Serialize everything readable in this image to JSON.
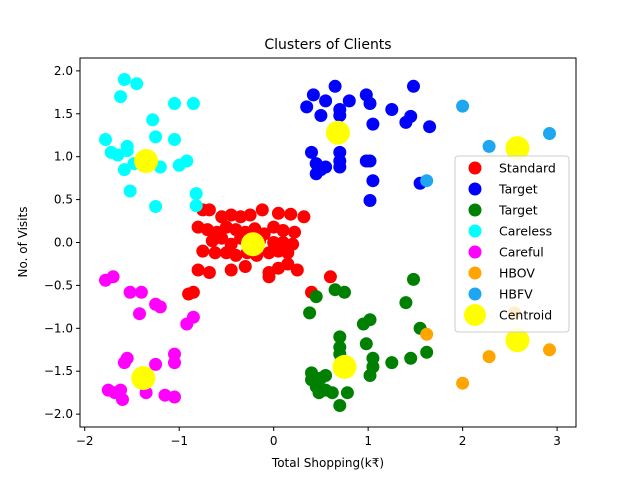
{
  "chart_data": {
    "type": "scatter",
    "title": "Clusters of Clients",
    "xlabel": "Total Shopping(k₹)",
    "ylabel": "No. of Visits",
    "xlim": [
      -2.05,
      3.2
    ],
    "ylim": [
      -2.15,
      2.15
    ],
    "xticks": [
      -2,
      -1,
      0,
      1,
      2,
      3
    ],
    "yticks": [
      -2.0,
      -1.5,
      -1.0,
      -0.5,
      0.0,
      0.5,
      1.0,
      1.5,
      2.0
    ],
    "xtick_labels": [
      "−2",
      "−1",
      "0",
      "1",
      "2",
      "3"
    ],
    "ytick_labels": [
      "−2.0",
      "−1.5",
      "−1.0",
      "−0.5",
      "0.0",
      "0.5",
      "1.0",
      "1.5",
      "2.0"
    ],
    "grid": false,
    "legend_position": "right",
    "series": [
      {
        "name": "Standard",
        "color": "#ff0000",
        "points": [
          [
            -0.75,
            0.38
          ],
          [
            -0.68,
            0.38
          ],
          [
            -0.55,
            0.3
          ],
          [
            -0.45,
            0.32
          ],
          [
            -0.35,
            0.3
          ],
          [
            -0.25,
            0.32
          ],
          [
            -0.12,
            0.38
          ],
          [
            0.05,
            0.34
          ],
          [
            0.18,
            0.33
          ],
          [
            0.32,
            0.3
          ],
          [
            -0.8,
            0.18
          ],
          [
            -0.7,
            0.15
          ],
          [
            -0.6,
            0.12
          ],
          [
            -0.5,
            0.18
          ],
          [
            -0.4,
            0.15
          ],
          [
            -0.3,
            0.12
          ],
          [
            -0.2,
            0.16
          ],
          [
            -0.1,
            0.1
          ],
          [
            0.0,
            0.18
          ],
          [
            0.1,
            0.14
          ],
          [
            0.22,
            0.12
          ],
          [
            -0.65,
            0.02
          ],
          [
            -0.55,
            0.05
          ],
          [
            -0.45,
            -0.02
          ],
          [
            -0.35,
            0.05
          ],
          [
            -0.25,
            -0.02
          ],
          [
            -0.15,
            0.02
          ],
          [
            0.0,
            0.0
          ],
          [
            0.1,
            0.0
          ],
          [
            0.2,
            -0.02
          ],
          [
            -0.75,
            -0.1
          ],
          [
            -0.62,
            -0.12
          ],
          [
            -0.5,
            -0.12
          ],
          [
            -0.4,
            -0.15
          ],
          [
            -0.28,
            -0.12
          ],
          [
            -0.18,
            -0.15
          ],
          [
            -0.05,
            -0.12
          ],
          [
            0.05,
            -0.1
          ],
          [
            0.15,
            -0.12
          ],
          [
            -0.8,
            -0.32
          ],
          [
            -0.68,
            -0.35
          ],
          [
            -0.45,
            -0.32
          ],
          [
            -0.3,
            -0.28
          ],
          [
            -0.05,
            -0.35
          ],
          [
            0.05,
            -0.3
          ],
          [
            0.15,
            -0.25
          ],
          [
            0.25,
            -0.32
          ],
          [
            -0.05,
            -0.4
          ],
          [
            0.6,
            -0.4
          ],
          [
            0.4,
            -0.58
          ],
          [
            -0.85,
            -0.58
          ],
          [
            -0.9,
            -0.6
          ]
        ]
      },
      {
        "name": "Target",
        "color": "#0000ff",
        "points": [
          [
            0.35,
            1.58
          ],
          [
            0.42,
            1.72
          ],
          [
            0.55,
            1.65
          ],
          [
            0.65,
            1.82
          ],
          [
            0.7,
            1.55
          ],
          [
            0.8,
            1.65
          ],
          [
            0.7,
            1.48
          ],
          [
            0.5,
            1.48
          ],
          [
            0.98,
            1.72
          ],
          [
            1.02,
            1.62
          ],
          [
            1.25,
            1.55
          ],
          [
            1.4,
            1.4
          ],
          [
            1.45,
            1.47
          ],
          [
            1.48,
            1.82
          ],
          [
            1.65,
            1.35
          ],
          [
            1.05,
            1.38
          ],
          [
            0.4,
            1.05
          ],
          [
            0.45,
            0.92
          ],
          [
            0.5,
            0.85
          ],
          [
            0.45,
            0.8
          ],
          [
            0.55,
            0.88
          ],
          [
            0.7,
            1.05
          ],
          [
            0.7,
            0.95
          ],
          [
            0.7,
            0.88
          ],
          [
            0.98,
            0.95
          ],
          [
            1.02,
            0.95
          ],
          [
            1.05,
            0.72
          ],
          [
            1.02,
            0.49
          ],
          [
            1.55,
            0.69
          ]
        ]
      },
      {
        "name": "Target",
        "color": "#008000",
        "points": [
          [
            0.38,
            -0.82
          ],
          [
            0.45,
            -0.63
          ],
          [
            0.65,
            -0.55
          ],
          [
            0.75,
            -0.58
          ],
          [
            0.95,
            -0.95
          ],
          [
            1.02,
            -0.9
          ],
          [
            1.4,
            -0.7
          ],
          [
            1.48,
            -0.43
          ],
          [
            1.55,
            -1.0
          ],
          [
            1.62,
            -1.28
          ],
          [
            1.45,
            -1.35
          ],
          [
            1.25,
            -1.4
          ],
          [
            1.05,
            -1.35
          ],
          [
            1.05,
            -1.45
          ],
          [
            1.02,
            -1.55
          ],
          [
            0.98,
            -1.18
          ],
          [
            0.7,
            -1.1
          ],
          [
            0.7,
            -1.22
          ],
          [
            0.7,
            -1.3
          ],
          [
            0.72,
            -1.38
          ],
          [
            0.4,
            -1.52
          ],
          [
            0.4,
            -1.6
          ],
          [
            0.5,
            -1.58
          ],
          [
            0.55,
            -1.55
          ],
          [
            0.45,
            -1.68
          ],
          [
            0.48,
            -1.75
          ],
          [
            0.55,
            -1.72
          ],
          [
            0.62,
            -1.75
          ],
          [
            0.78,
            -1.75
          ],
          [
            0.7,
            -1.9
          ]
        ]
      },
      {
        "name": "Careless",
        "color": "#00ffff",
        "points": [
          [
            -1.58,
            1.9
          ],
          [
            -1.45,
            1.85
          ],
          [
            -1.62,
            1.7
          ],
          [
            -1.28,
            1.43
          ],
          [
            -1.05,
            1.62
          ],
          [
            -0.85,
            1.62
          ],
          [
            -1.25,
            1.23
          ],
          [
            -1.05,
            1.2
          ],
          [
            -1.78,
            1.2
          ],
          [
            -1.72,
            1.05
          ],
          [
            -1.65,
            1.02
          ],
          [
            -1.55,
            1.07
          ],
          [
            -1.55,
            1.12
          ],
          [
            -1.48,
            0.92
          ],
          [
            -1.58,
            0.85
          ],
          [
            -1.2,
            0.88
          ],
          [
            -1.0,
            0.9
          ],
          [
            -0.92,
            0.95
          ],
          [
            -1.52,
            0.6
          ],
          [
            -0.82,
            0.57
          ],
          [
            -1.25,
            0.42
          ],
          [
            -0.82,
            0.43
          ]
        ]
      },
      {
        "name": "Careful",
        "color": "#ff00ff",
        "points": [
          [
            -1.78,
            -0.44
          ],
          [
            -1.7,
            -0.4
          ],
          [
            -1.52,
            -0.58
          ],
          [
            -1.4,
            -0.58
          ],
          [
            -1.25,
            -0.72
          ],
          [
            -1.2,
            -0.75
          ],
          [
            -1.42,
            -0.83
          ],
          [
            -0.92,
            -0.95
          ],
          [
            -0.85,
            -0.87
          ],
          [
            -1.55,
            -1.35
          ],
          [
            -1.58,
            -1.4
          ],
          [
            -1.05,
            -1.3
          ],
          [
            -1.05,
            -1.4
          ],
          [
            -1.25,
            -1.42
          ],
          [
            -1.75,
            -1.72
          ],
          [
            -1.68,
            -1.75
          ],
          [
            -1.62,
            -1.72
          ],
          [
            -1.6,
            -1.83
          ],
          [
            -1.35,
            -1.75
          ],
          [
            -1.15,
            -1.78
          ],
          [
            -1.05,
            -1.8
          ]
        ]
      },
      {
        "name": "HBOV",
        "color": "#ffa500",
        "points": [
          [
            1.62,
            -1.07
          ],
          [
            2.28,
            -1.33
          ],
          [
            2.55,
            -0.82
          ],
          [
            2.92,
            -1.25
          ],
          [
            2.0,
            -1.64
          ]
        ]
      },
      {
        "name": "HBFV",
        "color": "#1ea7f0",
        "points": [
          [
            2.0,
            1.59
          ],
          [
            2.28,
            1.12
          ],
          [
            2.92,
            1.27
          ],
          [
            1.62,
            0.72
          ]
        ]
      },
      {
        "name": "Centroid",
        "color": "#ffff00",
        "points": [
          [
            -0.22,
            -0.02
          ],
          [
            0.68,
            1.28
          ],
          [
            -1.35,
            0.95
          ],
          [
            -1.38,
            -1.58
          ],
          [
            0.75,
            -1.45
          ],
          [
            2.58,
            1.1
          ],
          [
            2.58,
            -1.14
          ]
        ]
      }
    ],
    "legend_entries": [
      "Standard",
      "Target",
      "Target",
      "Careless",
      "Careful",
      "HBOV",
      "HBFV",
      "Centroid"
    ]
  }
}
